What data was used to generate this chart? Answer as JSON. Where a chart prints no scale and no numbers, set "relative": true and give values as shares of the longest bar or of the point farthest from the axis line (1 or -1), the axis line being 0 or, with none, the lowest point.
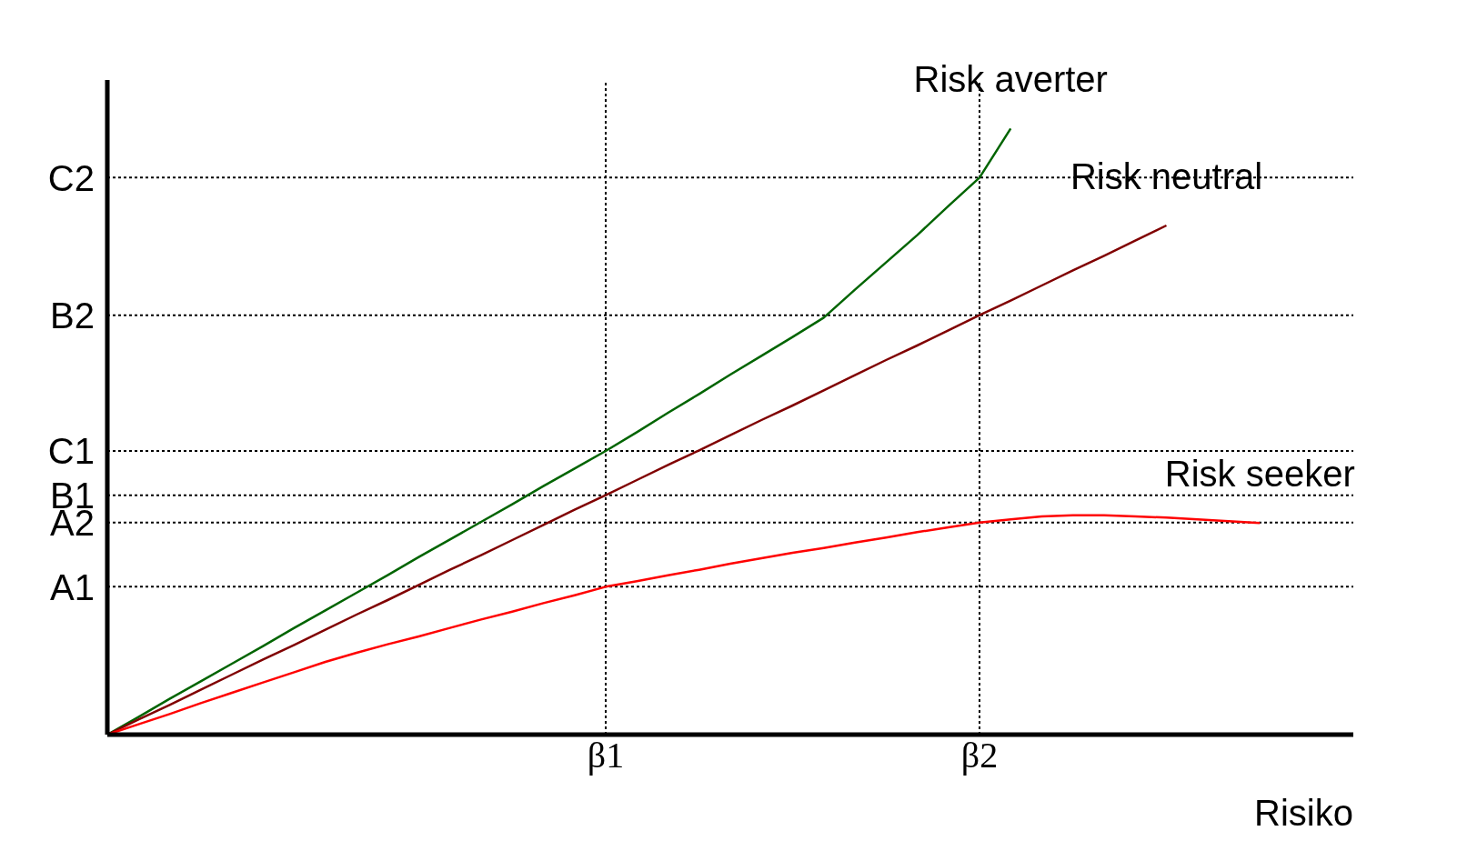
{
  "chart_data": {
    "type": "line",
    "relative": true,
    "xlabel": "Risiko",
    "categories": [
      null,
      null,
      null,
      null,
      null,
      null,
      null,
      null,
      null,
      null,
      null,
      null,
      null,
      null,
      null,
      null,
      "β1",
      null,
      null,
      null,
      null,
      null,
      null,
      null,
      null,
      null,
      null,
      null,
      "β2",
      null,
      null,
      null,
      null,
      null,
      null,
      null,
      null,
      null,
      null,
      null,
      null
    ],
    "series": [
      {
        "name": "Risk averter",
        "color": "#006400",
        "values": [
          0,
          0.029,
          0.059,
          0.088,
          0.117,
          0.146,
          0.176,
          0.205,
          0.234,
          0.263,
          0.293,
          0.322,
          0.351,
          0.38,
          0.41,
          0.439,
          0.468,
          0.499,
          0.531,
          0.562,
          0.594,
          0.625,
          0.656,
          0.688,
          0.734,
          0.779,
          0.824,
          0.872,
          0.919,
          1.0,
          null,
          null,
          null,
          null,
          null,
          null,
          null,
          null,
          null,
          null,
          null
        ]
      },
      {
        "name": "Risk neutral",
        "color": "#800000",
        "values": [
          0,
          0.025,
          0.049,
          0.074,
          0.099,
          0.124,
          0.148,
          0.173,
          0.198,
          0.222,
          0.247,
          0.272,
          0.296,
          0.321,
          0.346,
          0.371,
          0.395,
          0.42,
          0.445,
          0.469,
          0.494,
          0.519,
          0.543,
          0.568,
          0.593,
          0.618,
          0.642,
          0.667,
          0.692,
          0.716,
          0.741,
          0.766,
          0.79,
          0.815,
          0.84,
          null,
          null,
          null,
          null,
          null,
          null
        ]
      },
      {
        "name": "Risk seeker",
        "color": "#ff0000",
        "values": [
          0,
          0.017,
          0.034,
          0.052,
          0.069,
          0.086,
          0.103,
          0.12,
          0.135,
          0.149,
          0.162,
          0.176,
          0.19,
          0.203,
          0.217,
          0.23,
          0.244,
          0.253,
          0.263,
          0.272,
          0.282,
          0.291,
          0.3,
          0.308,
          0.317,
          0.325,
          0.334,
          0.342,
          0.35,
          0.355,
          0.36,
          0.362,
          0.362,
          0.36,
          0.358,
          0.355,
          0.352,
          0.349,
          null,
          null,
          null
        ]
      }
    ],
    "ref_lines": [
      {
        "axis": "y",
        "value": 0.919,
        "label": "C2",
        "line_style": "dotted"
      },
      {
        "axis": "y",
        "value": 0.692,
        "label": "B2",
        "line_style": "dotted"
      },
      {
        "axis": "y",
        "value": 0.468,
        "label": "C1",
        "line_style": "dotted"
      },
      {
        "axis": "y",
        "value": 0.395,
        "label": "B1",
        "line_style": "dotted"
      },
      {
        "axis": "y",
        "value": 0.35,
        "label": "A2",
        "line_style": "dotted"
      },
      {
        "axis": "y",
        "value": 0.244,
        "label": "A1",
        "line_style": "dotted"
      },
      {
        "axis": "x",
        "value": "β1",
        "color": "#000000",
        "line_style": "dotted"
      },
      {
        "axis": "x",
        "value": "β2",
        "color": "#000000",
        "line_style": "dotted"
      }
    ],
    "line_style": "solid",
    "marker": "none",
    "grid": false,
    "legend": false
  }
}
